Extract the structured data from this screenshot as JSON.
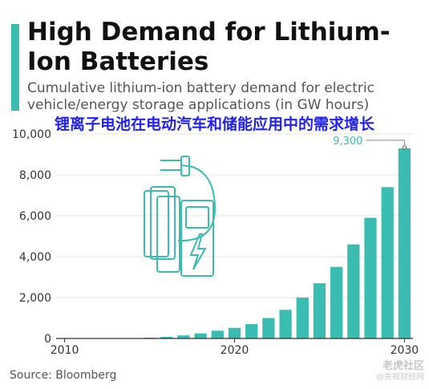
{
  "title": "High Demand for Lithium-Ion Batteries",
  "subtitle": "Cumulative lithium-ion battery demand for electric vehicle/energy storage applications (in GW hours)",
  "overlay_caption": "锂离子电池在电动汽车和储能应用中的需求增长",
  "source": "Source: Bloomberg",
  "watermark": {
    "logo": "老虎社区",
    "sub": "@央视财经网"
  },
  "colors": {
    "accent": "#3bbcb0",
    "bar": "#3bbcb0",
    "icon": "#3bbcb0",
    "caption": "#2222ee"
  },
  "chart_data": {
    "type": "bar",
    "categories": [
      "2010",
      "2011",
      "2012",
      "2013",
      "2014",
      "2015",
      "2016",
      "2017",
      "2018",
      "2019",
      "2020",
      "2021",
      "2022",
      "2023",
      "2024",
      "2025",
      "2026",
      "2027",
      "2028",
      "2029",
      "2030"
    ],
    "values": [
      0,
      0,
      0,
      0,
      0,
      40,
      80,
      150,
      250,
      380,
      520,
      700,
      1000,
      1400,
      2000,
      2700,
      3500,
      4600,
      5900,
      7400,
      9300
    ],
    "x_ticks": [
      "2010",
      "2020",
      "2030"
    ],
    "y_ticks": [
      0,
      2000,
      4000,
      6000,
      8000,
      10000
    ],
    "y_tick_labels": [
      "0",
      "2,000",
      "4,000",
      "6,000",
      "8,000",
      "10,000"
    ],
    "ylim": [
      0,
      10000
    ],
    "grid": true,
    "annotation": {
      "category": "2030",
      "text": "9,300"
    }
  }
}
